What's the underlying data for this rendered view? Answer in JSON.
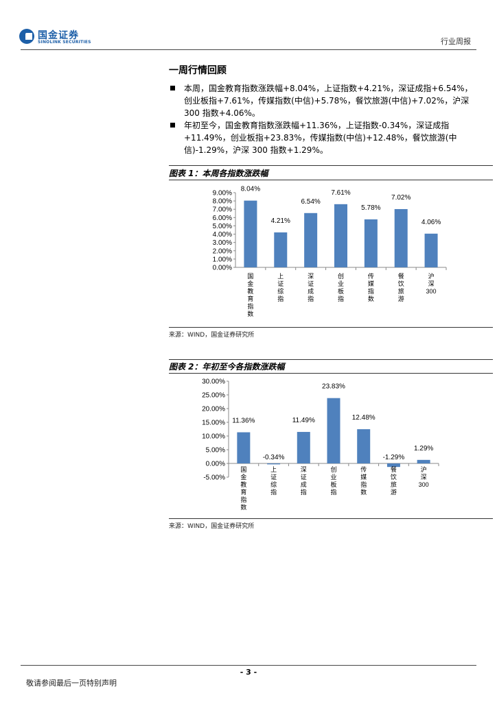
{
  "header": {
    "logo_cn": "国金证券",
    "logo_en": "SINOLINK SECURITIES",
    "report_type": "行业周报"
  },
  "section": {
    "title": "一周行情回顾",
    "bullets": [
      "本周，国金教育指数涨跌幅+8.04%，上证指数+4.21%，深证成指+6.54%，创业板指+7.61%，传媒指数(中信)+5.78%，餐饮旅游(中信)+7.02%，沪深300 指数+4.06%。",
      "年初至今，国金教育指数涨跌幅+11.36%，上证指数-0.34%，深证成指+11.49%，创业板指+23.83%，传媒指数(中信)+12.48%，餐饮旅游(中信)-1.29%，沪深 300 指数+1.29%。"
    ]
  },
  "figure1": {
    "title": "图表 1：本周各指数涨跌幅",
    "source": "来源：WIND，国金证券研究所"
  },
  "figure2": {
    "title": "图表 2：年初至今各指数涨跌幅",
    "source": "来源：WIND，国金证券研究所"
  },
  "chart_data": [
    {
      "type": "bar",
      "title": "图表 1：本周各指数涨跌幅",
      "categories": [
        "国金教育指数",
        "上证综指",
        "深证成指",
        "创业板指",
        "传媒指数",
        "餐饮旅游",
        "沪深300"
      ],
      "values": [
        8.04,
        4.21,
        6.54,
        7.61,
        5.78,
        7.02,
        4.06
      ],
      "data_labels": [
        "8.04%",
        "4.21%",
        "6.54%",
        "7.61%",
        "5.78%",
        "7.02%",
        "4.06%"
      ],
      "ylim": [
        0,
        9
      ],
      "yticks": [
        "9.00%",
        "8.00%",
        "7.00%",
        "6.00%",
        "5.00%",
        "4.00%",
        "3.00%",
        "2.00%",
        "1.00%",
        "0.00%"
      ],
      "bar_color": "#4f81bd",
      "grid": false
    },
    {
      "type": "bar",
      "title": "图表 2：年初至今各指数涨跌幅",
      "categories": [
        "国金教育指数",
        "上证综指",
        "深证成指",
        "创业板指",
        "传媒指数",
        "餐饮旅游",
        "沪深300"
      ],
      "values": [
        11.36,
        -0.34,
        11.49,
        23.83,
        12.48,
        -1.29,
        1.29
      ],
      "data_labels": [
        "11.36%",
        "-0.34%",
        "11.49%",
        "23.83%",
        "12.48%",
        "-1.29%",
        "1.29%"
      ],
      "ylim": [
        -5,
        30
      ],
      "yticks": [
        "30.00%",
        "25.00%",
        "20.00%",
        "15.00%",
        "10.00%",
        "5.00%",
        "0.00%",
        "-5.00%"
      ],
      "bar_color": "#4f81bd",
      "grid": false
    }
  ],
  "footer": {
    "page_number": "- 3 -",
    "disclaimer": "敬请参阅最后一页特别声明"
  }
}
